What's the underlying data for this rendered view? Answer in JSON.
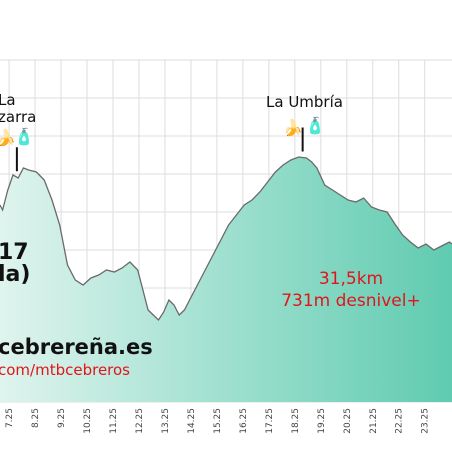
{
  "chart_data": {
    "type": "area",
    "title": "",
    "xlabel": "",
    "ylabel": "",
    "x_unit": "km",
    "xlim": [
      6.9,
      24.3
    ],
    "tick_labels": [
      "7.25",
      "8.25",
      "9.25",
      "10.25",
      "11.25",
      "12.25",
      "13.25",
      "14.25",
      "15.25",
      "16.25",
      "17.25",
      "18.25",
      "19.25",
      "20.25",
      "21.25",
      "22.25",
      "23.25"
    ],
    "grid": true,
    "series": [
      {
        "values_note_units": "x in km, y relative elevation",
        "x": [
          6.9,
          7.0,
          7.2,
          7.4,
          7.6,
          7.8,
          8.0,
          8.3,
          8.6,
          8.9,
          9.2,
          9.5,
          9.8,
          10.1,
          10.4,
          10.7,
          11.0,
          11.3,
          11.6,
          11.9,
          12.2,
          12.4,
          12.6,
          12.8,
          13.0,
          13.2,
          13.4,
          13.6,
          13.8,
          14.0,
          14.2,
          14.5,
          14.8,
          15.1,
          15.4,
          15.7,
          16.0,
          16.3,
          16.6,
          16.9,
          17.2,
          17.5,
          17.8,
          18.1,
          18.4,
          18.7,
          18.9,
          19.1,
          19.4,
          19.7,
          20.0,
          20.3,
          20.6,
          20.9,
          21.2,
          21.5,
          21.8,
          22.1,
          22.4,
          22.7,
          23.0,
          23.3,
          23.6,
          23.9,
          24.2,
          24.3
        ],
        "y": [
          205,
          210,
          190,
          175,
          178,
          168,
          170,
          172,
          180,
          200,
          225,
          265,
          280,
          285,
          278,
          275,
          270,
          272,
          268,
          262,
          270,
          290,
          310,
          315,
          320,
          312,
          300,
          305,
          315,
          310,
          300,
          285,
          270,
          255,
          240,
          225,
          215,
          205,
          200,
          192,
          182,
          172,
          165,
          160,
          157,
          158,
          162,
          168,
          185,
          190,
          195,
          200,
          202,
          198,
          207,
          210,
          212,
          224,
          235,
          242,
          248,
          244,
          250,
          246,
          242,
          244
        ]
      }
    ],
    "y_reversed_pixel_hint": false,
    "waypoints": [
      {
        "name_line1": "La",
        "name_line2": "zarra",
        "x": 7.55
      },
      {
        "name_line1": "La Umbría",
        "name_line2": "",
        "x": 18.55
      }
    ],
    "annotations": {
      "left_partial_line1": "17",
      "left_partial_line2": "la)",
      "distance": "31,5km",
      "elevation_gain": "731m desnivel+",
      "site": "cebrereña.es",
      "social": "com/mtbcebreros"
    },
    "colors": {
      "fill_top": "#d6f1e8",
      "fill_bottom": "#5fcbb0",
      "line": "#6a6a6a",
      "grid": "#dddddd",
      "accent_red": "#e0151b"
    }
  }
}
